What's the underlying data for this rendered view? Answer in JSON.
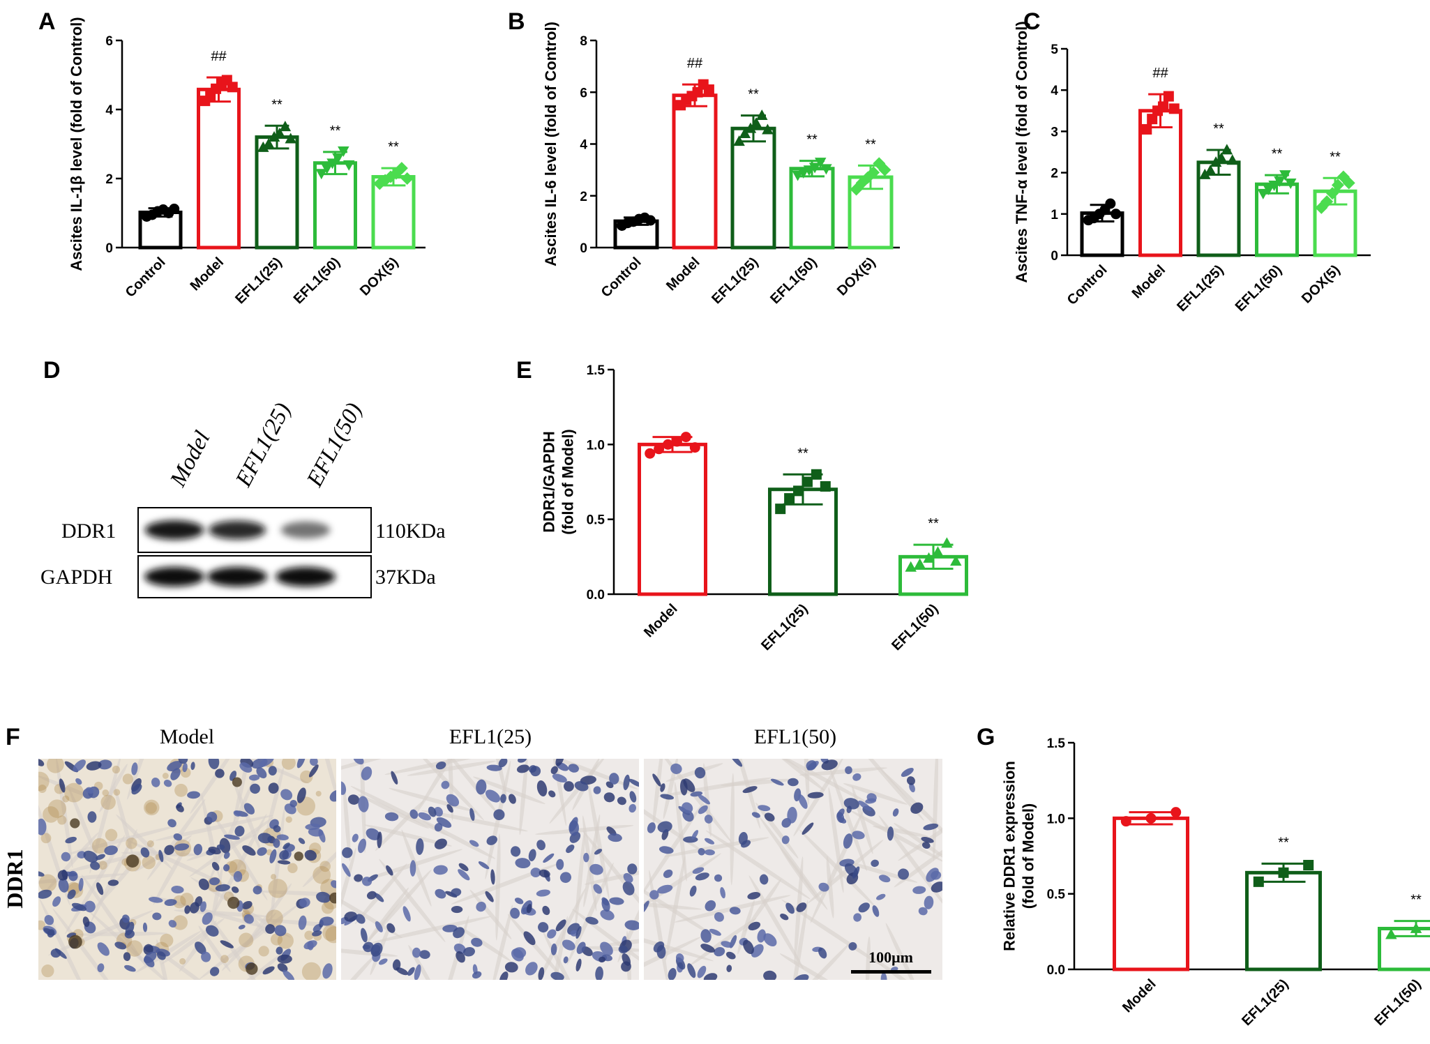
{
  "colors": {
    "Control": "#000000",
    "Model": "#e8141b",
    "EFL1(25)": "#0f5e19",
    "EFL1(50)": "#2dbb3a",
    "DOX(5)": "#4bdc4f"
  },
  "chart_data": [
    {
      "panel": "A",
      "type": "bar",
      "ylabel": "Ascites IL-1β level (fold of Control)",
      "ylim": [
        0,
        6
      ],
      "yticks": [
        "0",
        "2",
        "4",
        "6"
      ],
      "categories": [
        "Control",
        "Model",
        "EFL1(25)",
        "EFL1(50)",
        "DOX(5)"
      ],
      "values": [
        1.02,
        4.58,
        3.2,
        2.45,
        2.05
      ],
      "errors": [
        0.12,
        0.35,
        0.33,
        0.32,
        0.25
      ],
      "points": [
        [
          0.9,
          0.95,
          1.05,
          1.1,
          1.0,
          1.12
        ],
        [
          4.25,
          4.4,
          4.6,
          4.75,
          4.85,
          4.65
        ],
        [
          2.9,
          3.0,
          3.2,
          3.3,
          3.5,
          3.15
        ],
        [
          2.15,
          2.3,
          2.45,
          2.6,
          2.8,
          2.4
        ],
        [
          1.85,
          1.95,
          2.05,
          2.15,
          2.3,
          2.0
        ]
      ],
      "markers": [
        "circle",
        "square",
        "triangle",
        "triangle-down",
        "diamond"
      ],
      "annotations": [
        "",
        "##",
        "**",
        "**",
        "**"
      ]
    },
    {
      "panel": "B",
      "type": "bar",
      "ylabel": "Ascites IL-6 level (fold of Control)",
      "ylim": [
        0,
        8
      ],
      "yticks": [
        "0",
        "2",
        "4",
        "6",
        "8"
      ],
      "categories": [
        "Control",
        "Model",
        "EFL1(25)",
        "EFL1(50)",
        "DOX(5)"
      ],
      "values": [
        1.02,
        5.88,
        4.6,
        3.05,
        2.72
      ],
      "errors": [
        0.14,
        0.42,
        0.5,
        0.3,
        0.45
      ],
      "points": [
        [
          0.85,
          0.95,
          1.0,
          1.1,
          1.15,
          1.05
        ],
        [
          5.5,
          5.7,
          5.85,
          6.0,
          6.3,
          6.1
        ],
        [
          4.1,
          4.4,
          4.6,
          4.8,
          5.1,
          4.55
        ],
        [
          2.8,
          2.9,
          3.0,
          3.1,
          3.3,
          3.05
        ],
        [
          2.25,
          2.5,
          2.7,
          2.9,
          3.25,
          3.0
        ]
      ],
      "markers": [
        "circle",
        "square",
        "triangle",
        "triangle-down",
        "diamond"
      ],
      "annotations": [
        "",
        "##",
        "**",
        "**",
        "**"
      ]
    },
    {
      "panel": "C",
      "type": "bar",
      "ylabel": "Ascites TNF-α level (fold of Control)",
      "ylim": [
        0,
        5
      ],
      "yticks": [
        "0",
        "1",
        "2",
        "3",
        "4",
        "5"
      ],
      "categories": [
        "Control",
        "Model",
        "EFL1(25)",
        "EFL1(50)",
        "DOX(5)"
      ],
      "values": [
        1.02,
        3.5,
        2.25,
        1.72,
        1.55
      ],
      "errors": [
        0.2,
        0.4,
        0.3,
        0.22,
        0.32
      ],
      "points": [
        [
          0.85,
          0.9,
          1.0,
          1.1,
          1.25,
          1.0
        ],
        [
          3.05,
          3.3,
          3.5,
          3.6,
          3.85,
          3.55
        ],
        [
          1.95,
          2.05,
          2.25,
          2.35,
          2.55,
          2.3
        ],
        [
          1.5,
          1.6,
          1.7,
          1.8,
          1.95,
          1.75
        ],
        [
          1.15,
          1.3,
          1.5,
          1.7,
          1.9,
          1.75
        ]
      ],
      "markers": [
        "circle",
        "square",
        "triangle",
        "triangle-down",
        "diamond"
      ],
      "annotations": [
        "",
        "##",
        "**",
        "**",
        "**"
      ]
    },
    {
      "panel": "E",
      "type": "bar",
      "ylabel_lines": [
        "DDR1/GAPDH",
        "(fold of Model)"
      ],
      "ylim": [
        0,
        1.5
      ],
      "yticks": [
        "0.0",
        "0.5",
        "1.0",
        "1.5"
      ],
      "categories": [
        "Model",
        "EFL1(25)",
        "EFL1(50)"
      ],
      "values": [
        1.0,
        0.7,
        0.25
      ],
      "errors": [
        0.05,
        0.1,
        0.08
      ],
      "points": [
        [
          0.94,
          0.97,
          1.0,
          1.02,
          1.05,
          0.98
        ],
        [
          0.57,
          0.64,
          0.69,
          0.75,
          0.8,
          0.72
        ],
        [
          0.18,
          0.2,
          0.24,
          0.28,
          0.34,
          0.22
        ]
      ],
      "markers": [
        "circle",
        "square",
        "triangle"
      ],
      "annotations": [
        "",
        "**",
        "**"
      ]
    },
    {
      "panel": "G",
      "type": "bar",
      "ylabel_lines": [
        "Relative DDR1 expression",
        "(fold of Model)"
      ],
      "ylim": [
        0,
        1.5
      ],
      "yticks": [
        "0.0",
        "0.5",
        "1.0",
        "1.5"
      ],
      "categories": [
        "Model",
        "EFL1(25)",
        "EFL1(50)"
      ],
      "values": [
        1.0,
        0.64,
        0.27
      ],
      "errors": [
        0.04,
        0.06,
        0.05
      ],
      "points": [
        [
          0.98,
          1.0,
          1.04
        ],
        [
          0.58,
          0.64,
          0.69
        ],
        [
          0.23,
          0.27,
          0.31
        ]
      ],
      "markers": [
        "circle",
        "square",
        "triangle"
      ],
      "annotations": [
        "",
        "**",
        "**"
      ]
    }
  ],
  "western_blot": {
    "letter": "D",
    "lanes": [
      "Model",
      "EFL1(25)",
      "EFL1(50)"
    ],
    "rows": [
      {
        "label": "DDR1",
        "size": "110KDa",
        "intensity": [
          0.95,
          0.85,
          0.4
        ]
      },
      {
        "label": "GAPDH",
        "size": "37KDa",
        "intensity": [
          1.0,
          1.0,
          1.0
        ]
      }
    ]
  },
  "ihc": {
    "letter": "F",
    "row_label": "DDR1",
    "columns": [
      "Model",
      "EFL1(25)",
      "EFL1(50)"
    ],
    "scale_bar": "100μm"
  }
}
